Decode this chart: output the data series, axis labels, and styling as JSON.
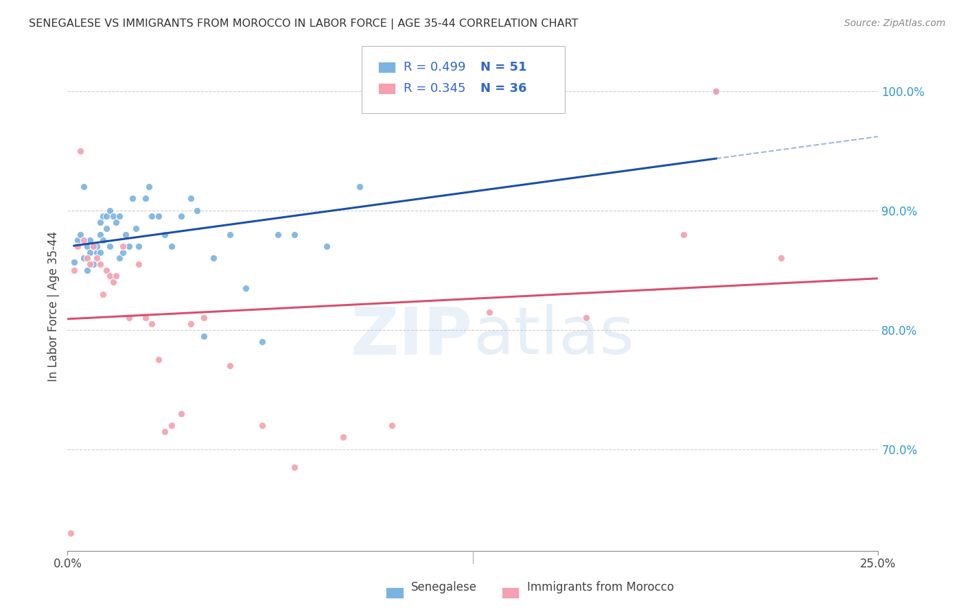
{
  "title": "SENEGALESE VS IMMIGRANTS FROM MOROCCO IN LABOR FORCE | AGE 35-44 CORRELATION CHART",
  "source": "Source: ZipAtlas.com",
  "ylabel": "In Labor Force | Age 35-44",
  "right_yticks": [
    0.7,
    0.8,
    0.9,
    1.0
  ],
  "right_yticklabels": [
    "70.0%",
    "80.0%",
    "90.0%",
    "100.0%"
  ],
  "legend_blue_r": "R = 0.499",
  "legend_blue_n": "N = 51",
  "legend_pink_r": "R = 0.345",
  "legend_pink_n": "N = 36",
  "blue_color": "#7ab3e0",
  "pink_color": "#f4a0b0",
  "blue_line_color": "#1a4faa",
  "pink_line_color": "#d94f6e",
  "dashed_line_color": "#a0b8d8",
  "legend_text_color": "#3366cc",
  "blue_scatter_x": [
    0.002,
    0.003,
    0.004,
    0.005,
    0.005,
    0.006,
    0.006,
    0.007,
    0.007,
    0.008,
    0.008,
    0.009,
    0.009,
    0.01,
    0.01,
    0.01,
    0.011,
    0.011,
    0.012,
    0.012,
    0.013,
    0.013,
    0.014,
    0.015,
    0.016,
    0.016,
    0.017,
    0.018,
    0.019,
    0.02,
    0.021,
    0.022,
    0.024,
    0.025,
    0.026,
    0.028,
    0.03,
    0.032,
    0.035,
    0.038,
    0.04,
    0.042,
    0.045,
    0.05,
    0.055,
    0.06,
    0.065,
    0.07,
    0.08,
    0.09,
    0.2
  ],
  "blue_scatter_y": [
    0.857,
    0.875,
    0.88,
    0.86,
    0.92,
    0.85,
    0.87,
    0.865,
    0.875,
    0.855,
    0.87,
    0.865,
    0.87,
    0.865,
    0.88,
    0.89,
    0.875,
    0.895,
    0.885,
    0.895,
    0.87,
    0.9,
    0.895,
    0.89,
    0.895,
    0.86,
    0.865,
    0.88,
    0.87,
    0.91,
    0.885,
    0.87,
    0.91,
    0.92,
    0.895,
    0.895,
    0.88,
    0.87,
    0.895,
    0.91,
    0.9,
    0.795,
    0.86,
    0.88,
    0.835,
    0.79,
    0.88,
    0.88,
    0.87,
    0.92,
    1.0
  ],
  "pink_scatter_x": [
    0.001,
    0.002,
    0.003,
    0.005,
    0.006,
    0.007,
    0.008,
    0.009,
    0.01,
    0.011,
    0.012,
    0.013,
    0.014,
    0.015,
    0.017,
    0.019,
    0.022,
    0.024,
    0.026,
    0.028,
    0.03,
    0.032,
    0.035,
    0.038,
    0.042,
    0.05,
    0.06,
    0.07,
    0.085,
    0.1,
    0.13,
    0.16,
    0.19,
    0.22,
    0.2,
    0.004
  ],
  "pink_scatter_y": [
    0.63,
    0.85,
    0.87,
    0.875,
    0.86,
    0.855,
    0.87,
    0.86,
    0.855,
    0.83,
    0.85,
    0.845,
    0.84,
    0.845,
    0.87,
    0.81,
    0.855,
    0.81,
    0.805,
    0.775,
    0.715,
    0.72,
    0.73,
    0.805,
    0.81,
    0.77,
    0.72,
    0.685,
    0.71,
    0.72,
    0.815,
    0.81,
    0.88,
    0.86,
    1.0,
    0.95
  ],
  "xlim": [
    0.0,
    0.25
  ],
  "ylim": [
    0.615,
    1.025
  ],
  "background_color": "#ffffff"
}
